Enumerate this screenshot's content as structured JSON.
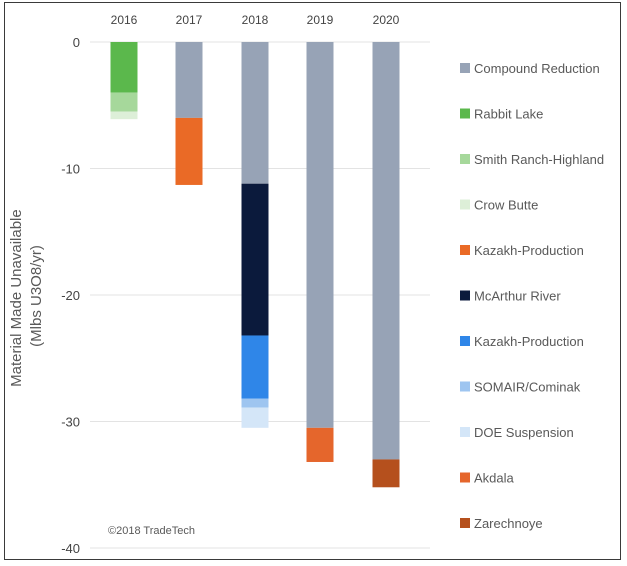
{
  "chart_data": {
    "type": "bar",
    "stacked": true,
    "categories": [
      "2016",
      "2017",
      "2018",
      "2019",
      "2020"
    ],
    "ylabel": "Material Made Unavailable (Mlbs U3O8/yr)",
    "ylabel_lines": [
      "Material Made Unavailable",
      "(Mlbs U3O8/yr)"
    ],
    "ylim": [
      -40,
      0
    ],
    "yticks": [
      0,
      -10,
      -20,
      -30,
      -40
    ],
    "grid": true,
    "legend_position": "right",
    "annotation": "©2018 TradeTech",
    "series": [
      {
        "name": "Compound Reduction",
        "color": "#97a3b6",
        "values": [
          0,
          -6,
          -11.2,
          -30.5,
          -33
        ]
      },
      {
        "name": "Rabbit Lake",
        "color": "#5bb84c",
        "values": [
          -4,
          0,
          0,
          0,
          0
        ]
      },
      {
        "name": "Smith Ranch-Highland",
        "color": "#a6d89b",
        "values": [
          -1.5,
          0,
          0,
          0,
          0
        ]
      },
      {
        "name": "Crow Butte",
        "color": "#ddefd8",
        "values": [
          -0.6,
          0,
          0,
          0,
          0
        ]
      },
      {
        "name": "Kazakh-Production",
        "color": "#ea6a26",
        "values": [
          0,
          -5.3,
          0,
          0,
          0
        ]
      },
      {
        "name": "McArthur River",
        "color": "#0b1a3c",
        "values": [
          0,
          0,
          -12,
          0,
          0
        ]
      },
      {
        "name": "Kazakh-Production",
        "color": "#2f86e8",
        "values": [
          0,
          0,
          -5,
          0,
          0
        ]
      },
      {
        "name": "SOMAIR/Cominak",
        "color": "#9ec5f0",
        "values": [
          0,
          0,
          -0.7,
          0,
          0
        ]
      },
      {
        "name": "DOE Suspension",
        "color": "#d4e6f8",
        "values": [
          0,
          0,
          -1.6,
          0,
          0
        ]
      },
      {
        "name": "Akdala",
        "color": "#e5662c",
        "values": [
          0,
          0,
          0,
          -2.7,
          0
        ]
      },
      {
        "name": "Zarechnoye",
        "color": "#b5501d",
        "values": [
          0,
          0,
          0,
          0,
          -2.2
        ]
      }
    ]
  }
}
